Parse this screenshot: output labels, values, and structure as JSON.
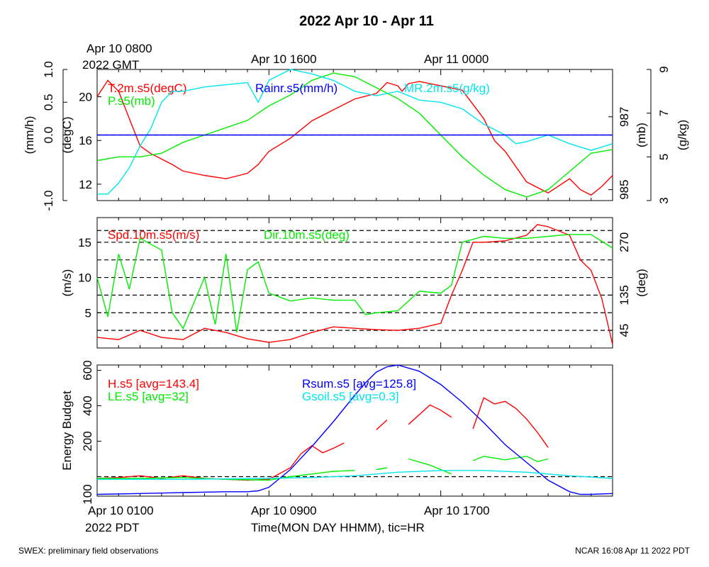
{
  "title": "2022 Apr 10 - Apr 11",
  "time_top": {
    "labels": [
      "Apr 10 0800",
      "2022 GMT",
      "Apr 10 1600",
      "Apr 11 0000"
    ]
  },
  "time_bottom": {
    "labels": [
      "Apr 10 0100",
      "2022 PDT",
      "Apr 10 0900",
      "Apr 10 1700"
    ],
    "xlabel": "Time(MON DAY HHMM), tic=HR"
  },
  "footer": {
    "left": "SWEX: preliminary field observations",
    "right": "NCAR 16:08 Apr 11 2022 PDT"
  },
  "colors": {
    "red": "#ff0000",
    "green": "#00ee00",
    "blue": "#0000ff",
    "cyan": "#00e5ee"
  },
  "chart_data": [
    {
      "type": "line",
      "panel": "state",
      "x_unit": "hours since Apr 10 0000 PDT",
      "xlim": [
        0,
        24
      ],
      "axes": [
        {
          "side": "left-outer",
          "label": "(mm/h)",
          "ticks": [
            "1.0",
            "0.5",
            "0.0",
            "-1.0"
          ],
          "ylim": [
            -1.0,
            1.0
          ]
        },
        {
          "side": "left-inner",
          "label": "(degC)",
          "ticks": [
            "20",
            "16",
            "12"
          ],
          "ylim": [
            10.5,
            22.5
          ]
        },
        {
          "side": "right-inner",
          "label": "(mb)",
          "ticks": [
            "987",
            "985"
          ],
          "ylim": [
            984.7,
            988.3
          ]
        },
        {
          "side": "right-outer",
          "label": "(g/kg)",
          "ticks": [
            "9",
            "7",
            "5",
            "3"
          ],
          "ylim": [
            3,
            9
          ]
        }
      ],
      "series": [
        {
          "name": "T.2m.s5(degC)",
          "color": "red",
          "axis": 1,
          "x": [
            0,
            0.5,
            1,
            1.5,
            2,
            2.5,
            3,
            3.5,
            4,
            5,
            6,
            7,
            7.5,
            8,
            9,
            10,
            11,
            12,
            13,
            13.5,
            14,
            14.2,
            14.5,
            15,
            16,
            17,
            18,
            18.5,
            19,
            20,
            21,
            22,
            22.5,
            23,
            23.5,
            24
          ],
          "y": [
            20,
            21.5,
            20.5,
            18,
            15.5,
            14.8,
            14.3,
            13.8,
            13.2,
            12.8,
            12.5,
            13,
            13.8,
            15,
            16.2,
            17.8,
            18.8,
            19.8,
            20.3,
            21.3,
            21,
            20.5,
            21.2,
            21.4,
            21,
            20.6,
            18,
            16,
            15,
            12.2,
            11.2,
            12.5,
            11.5,
            11,
            11.8,
            12.8
          ]
        },
        {
          "name": "P.s5(mb)",
          "color": "green",
          "axis": 2,
          "x": [
            0,
            1,
            2,
            3,
            4,
            5,
            6,
            7,
            8,
            9,
            10,
            11,
            12,
            13,
            14,
            15,
            16,
            17,
            18,
            19,
            20,
            21,
            22,
            23,
            24
          ],
          "y": [
            985.8,
            985.9,
            985.9,
            986.0,
            986.3,
            986.5,
            986.7,
            986.9,
            987.3,
            987.6,
            988.0,
            988.2,
            988.1,
            987.8,
            987.5,
            987.1,
            986.5,
            985.9,
            985.4,
            985.0,
            984.8,
            985.0,
            985.5,
            986.0,
            986.1
          ]
        },
        {
          "name": "MR.2m.s5(g/kg)",
          "color": "cyan",
          "axis": 3,
          "x": [
            0,
            0.5,
            1,
            1.5,
            2,
            2.5,
            3,
            3.5,
            4,
            5,
            6,
            7,
            7.5,
            8,
            9,
            10,
            11,
            12,
            13,
            14,
            15,
            16,
            17,
            18,
            19,
            19.5,
            20,
            21,
            22,
            23,
            24
          ],
          "y": [
            3.3,
            3.3,
            3.8,
            4.5,
            5.5,
            6.3,
            7.5,
            8,
            8,
            8.2,
            8.3,
            8.4,
            7.5,
            8.5,
            9,
            8.8,
            8.5,
            8.0,
            7.8,
            8.0,
            7.6,
            7.5,
            7.2,
            6.5,
            6,
            5.6,
            5.7,
            6,
            5.6,
            5.3,
            5.6
          ]
        },
        {
          "name": "Rainr.s5(mm/h)",
          "color": "blue",
          "axis": 0,
          "x": [
            0,
            24
          ],
          "y": [
            0,
            0
          ]
        }
      ],
      "ref_lines": [
        {
          "axis": 0,
          "y": 0,
          "style": "dashed"
        }
      ]
    },
    {
      "type": "line",
      "panel": "wind",
      "x_unit": "hours since Apr 10 0000 PDT",
      "xlim": [
        0,
        24
      ],
      "axes": [
        {
          "side": "left",
          "label": "(m/s)",
          "ticks": [
            "15",
            "10",
            "5"
          ],
          "ylim": [
            0,
            18.5
          ]
        },
        {
          "side": "right",
          "label": "(deg)",
          "ticks": [
            "270",
            "135",
            "45"
          ],
          "ylim": [
            0,
            333
          ]
        }
      ],
      "series": [
        {
          "name": "Spd.10m.s5(m/s)",
          "color": "red",
          "axis": 0,
          "x": [
            0,
            1,
            2,
            3,
            4,
            5,
            6,
            7,
            8,
            9,
            10,
            11,
            12,
            13,
            14,
            15,
            16,
            16.5,
            17,
            17.5,
            18,
            19,
            20,
            20.5,
            21,
            22,
            22.5,
            23,
            23.5,
            24
          ],
          "y": [
            1.5,
            1.2,
            2.5,
            1.5,
            1.2,
            2.8,
            2.2,
            1.3,
            0.8,
            1.2,
            2.2,
            3,
            2.8,
            2.6,
            2.5,
            2.8,
            3.5,
            7.5,
            11,
            15,
            15,
            15.2,
            16,
            17.5,
            17.2,
            16,
            12.5,
            11,
            7,
            0.5
          ]
        },
        {
          "name": "Dir.10m.s5(deg)",
          "color": "green",
          "axis": 1,
          "x": [
            0,
            0.5,
            1,
            1.5,
            2,
            3,
            3.5,
            4,
            5,
            5.5,
            6,
            6.5,
            7,
            7.5,
            8,
            9,
            10,
            11,
            12,
            12.5,
            13,
            14,
            15,
            16,
            16.5,
            17,
            18,
            19,
            20,
            21,
            22,
            23,
            24
          ],
          "y": [
            180,
            80,
            240,
            150,
            280,
            250,
            90,
            50,
            180,
            60,
            240,
            40,
            200,
            220,
            140,
            120,
            128,
            122,
            122,
            85,
            90,
            95,
            145,
            140,
            160,
            270,
            285,
            280,
            280,
            285,
            290,
            290,
            255
          ]
        }
      ],
      "ref_lines": [
        {
          "axis": 1,
          "y": 300,
          "style": "dashed"
        },
        {
          "axis": 1,
          "y": 270,
          "style": "dashed"
        },
        {
          "axis": 1,
          "y": 225,
          "style": "dashed"
        },
        {
          "axis": 1,
          "y": 180,
          "style": "dashed"
        },
        {
          "axis": 1,
          "y": 135,
          "style": "dashed"
        },
        {
          "axis": 1,
          "y": 90,
          "style": "dashed"
        },
        {
          "axis": 1,
          "y": 45,
          "style": "dashed"
        }
      ]
    },
    {
      "type": "line",
      "panel": "energy",
      "x_unit": "hours since Apr 10 0000 PDT",
      "xlim": [
        0,
        24
      ],
      "axes": [
        {
          "side": "left",
          "label": "Energy Budget",
          "ticks": [
            "600",
            "400",
            "200",
            "100"
          ],
          "ylim": [
            -110,
            630
          ]
        }
      ],
      "series": [
        {
          "name": "H.s5 [avg=143.4]",
          "color": "red",
          "axis": 0,
          "segments": [
            {
              "x": [
                0,
                1,
                2,
                3,
                4,
                5,
                6,
                7,
                8,
                9,
                9.5,
                10,
                10.5,
                11,
                11.5
              ],
              "y": [
                -10,
                -5,
                5,
                -10,
                5,
                -10,
                -15,
                -20,
                -15,
                50,
                130,
                175,
                135,
                160,
                190
              ]
            },
            {
              "x": [
                13,
                13.5
              ],
              "y": [
                265,
                320
              ]
            },
            {
              "x": [
                14.5,
                15.5,
                16,
                16.5
              ],
              "y": [
                295,
                405,
                375,
                335
              ]
            },
            {
              "x": [
                17.5,
                18,
                18.5,
                19,
                19.5,
                20,
                20.5,
                21
              ],
              "y": [
                270,
                445,
                410,
                425,
                385,
                325,
                250,
                165
              ]
            }
          ]
        },
        {
          "name": "LE.s5 [avg=32]",
          "color": "green",
          "axis": 0,
          "segments": [
            {
              "x": [
                0,
                2,
                4,
                6,
                8,
                9,
                10,
                11,
                12
              ],
              "y": [
                -10,
                -10,
                -5,
                -15,
                -20,
                0,
                15,
                30,
                35
              ]
            },
            {
              "x": [
                13,
                13.5
              ],
              "y": [
                40,
                50
              ]
            },
            {
              "x": [
                14.5,
                15.5,
                16,
                16.5
              ],
              "y": [
                100,
                65,
                40,
                15
              ]
            },
            {
              "x": [
                17.5,
                18,
                19,
                20,
                20.5,
                21
              ],
              "y": [
                90,
                115,
                95,
                115,
                85,
                100
              ]
            }
          ]
        },
        {
          "name": "Rsum.s5 [avg=125.8]",
          "color": "blue",
          "axis": 0,
          "x": [
            0,
            2,
            4,
            6,
            7,
            7.5,
            8,
            9,
            10,
            11,
            12,
            12.5,
            13,
            13.5,
            14,
            15,
            16,
            17,
            18,
            19,
            20,
            21,
            22,
            22.5,
            23,
            24
          ],
          "y": [
            -100,
            -95,
            -90,
            -85,
            -85,
            -80,
            -60,
            40,
            170,
            310,
            460,
            530,
            590,
            620,
            630,
            595,
            520,
            420,
            305,
            180,
            80,
            -20,
            -85,
            -100,
            -100,
            -95
          ]
        },
        {
          "name": "Gsoil.s5 [avg=0.3]",
          "color": "cyan",
          "axis": 0,
          "x": [
            0,
            4,
            8,
            10,
            12,
            14,
            16,
            18,
            20,
            22,
            24
          ],
          "y": [
            -15,
            -15,
            -10,
            -5,
            5,
            25,
            35,
            35,
            25,
            5,
            -10
          ]
        }
      ],
      "ref_lines": [
        {
          "axis": 0,
          "y": 0,
          "style": "dashed"
        }
      ]
    }
  ]
}
